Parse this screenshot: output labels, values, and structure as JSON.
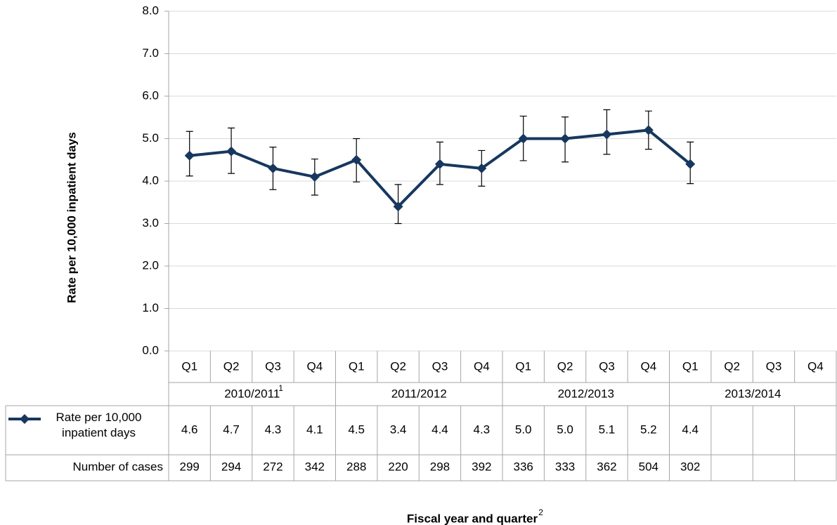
{
  "chart_data": {
    "type": "line",
    "y_label": "Rate per 10,000 inpatient days",
    "x_label": "Fiscal year and quarter",
    "x_label_note": "2",
    "categories": [
      "Q1",
      "Q2",
      "Q3",
      "Q4",
      "Q1",
      "Q2",
      "Q3",
      "Q4",
      "Q1",
      "Q2",
      "Q3",
      "Q4",
      "Q1",
      "Q2",
      "Q3",
      "Q4"
    ],
    "groups": [
      "2010/2011",
      "2011/2012",
      "2012/2013",
      "2013/2014"
    ],
    "group_notes": [
      "1",
      null,
      null,
      null
    ],
    "series": [
      {
        "name": "Rate per 10,000 inpatient days",
        "color": "#17375e",
        "values": [
          4.6,
          4.7,
          4.3,
          4.1,
          4.5,
          3.4,
          4.4,
          4.3,
          5.0,
          5.0,
          5.1,
          5.2,
          4.4,
          null,
          null,
          null
        ],
        "value_labels": [
          "4.6",
          "4.7",
          "4.3",
          "4.1",
          "4.5",
          "3.4",
          "4.4",
          "4.3",
          "5.0",
          "5.0",
          "5.1",
          "5.2",
          "4.4",
          null,
          null,
          null
        ],
        "ci_lower": [
          4.12,
          4.18,
          3.8,
          3.67,
          3.98,
          3.0,
          3.92,
          3.88,
          4.48,
          4.45,
          4.63,
          4.75,
          3.94,
          null,
          null,
          null
        ],
        "ci_upper": [
          5.17,
          5.25,
          4.8,
          4.52,
          5.0,
          3.92,
          4.92,
          4.72,
          5.53,
          5.51,
          5.68,
          5.65,
          4.92,
          null,
          null,
          null
        ]
      }
    ],
    "cases_label": "Number of cases",
    "cases": [
      299,
      294,
      272,
      342,
      288,
      220,
      298,
      392,
      336,
      333,
      362,
      504,
      302,
      null,
      null,
      null
    ],
    "ylim": [
      0,
      8
    ],
    "yticks": [
      {
        "value": 0,
        "label": "0.0"
      },
      {
        "value": 1,
        "label": "1.0"
      },
      {
        "value": 2,
        "label": "2.0"
      },
      {
        "value": 3,
        "label": "3.0"
      },
      {
        "value": 4,
        "label": "4.0"
      },
      {
        "value": 5,
        "label": "5.0"
      },
      {
        "value": 6,
        "label": "6.0"
      },
      {
        "value": 7,
        "label": "7.0"
      },
      {
        "value": 8,
        "label": "8.0"
      }
    ],
    "grid": true
  }
}
